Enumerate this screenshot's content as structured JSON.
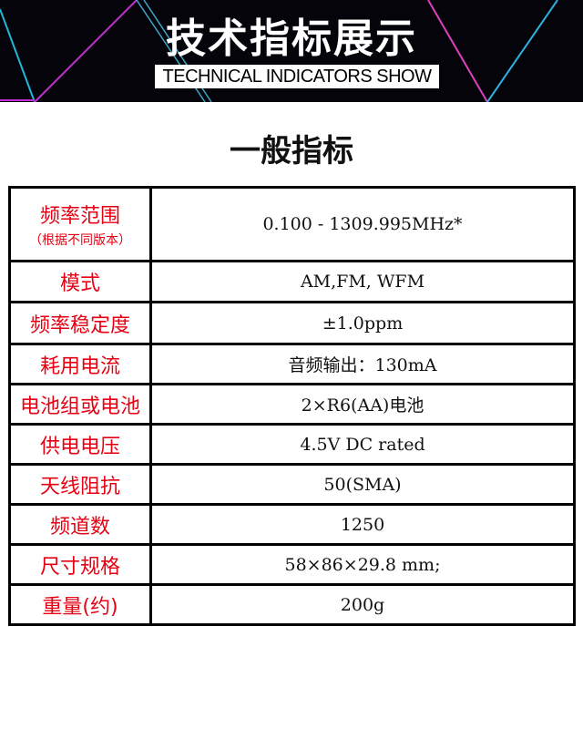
{
  "banner": {
    "title": "技术指标展示",
    "subtitle": "TECHNICAL INDICATORS SHOW"
  },
  "section_title": "一般指标",
  "colors": {
    "label": "#e60012",
    "banner_bg": "#05040a"
  },
  "rows": [
    {
      "label": "频率范围",
      "note": "（根据不同版本）",
      "value": "0.100 - 1309.995MHz*"
    },
    {
      "label": "模式",
      "value": "AM,FM, WFM"
    },
    {
      "label": "频率稳定度",
      "value": "±1.0ppm"
    },
    {
      "label": "耗用电流",
      "value": "音频输出：130mA"
    },
    {
      "label": "电池组或电池",
      "value": "2×R6(AA)电池"
    },
    {
      "label": "供电电压",
      "value": "4.5V DC rated"
    },
    {
      "label": "天线阻抗",
      "value": "50(SMA)"
    },
    {
      "label": "频道数",
      "value": "1250"
    },
    {
      "label": "尺寸规格",
      "value": "58×86×29.8 mm;"
    },
    {
      "label": "重量(约)",
      "value": "200g"
    }
  ]
}
